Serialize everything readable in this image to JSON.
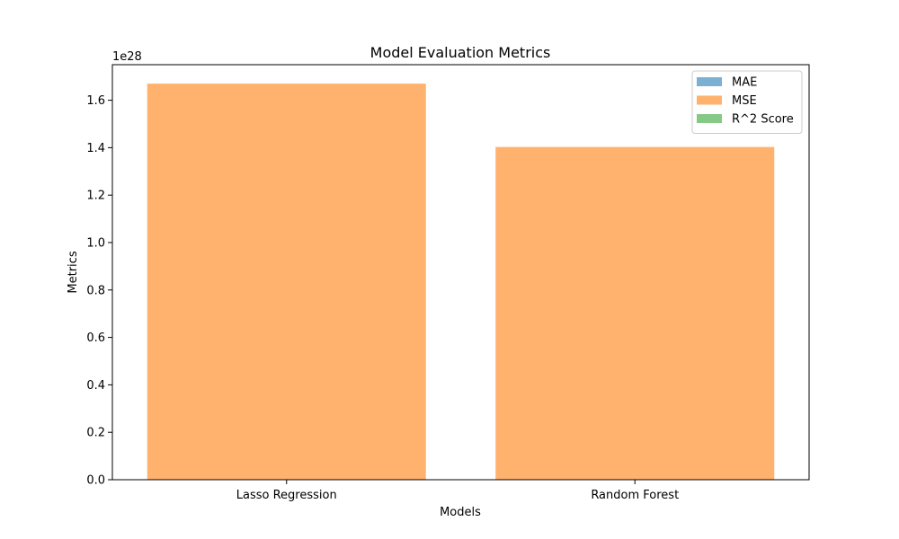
{
  "chart_data": {
    "type": "bar",
    "title": "Model Evaluation Metrics",
    "xlabel": "Models",
    "ylabel": "Metrics",
    "y_offset_label": "1e28",
    "categories": [
      "Lasso Regression",
      "Random Forest"
    ],
    "ylim": [
      0,
      1.75
    ],
    "yticks": [
      0.0,
      0.2,
      0.4,
      0.6,
      0.8,
      1.0,
      1.2,
      1.4,
      1.6
    ],
    "ytick_labels": [
      "0.0",
      "0.2",
      "0.4",
      "0.6",
      "0.8",
      "1.0",
      "1.2",
      "1.4",
      "1.6"
    ],
    "series": [
      {
        "name": "MAE",
        "color": "#7bafd4",
        "values": [
          0,
          0
        ]
      },
      {
        "name": "MSE",
        "color": "#ffb26e",
        "values": [
          1.67,
          1.403
        ]
      },
      {
        "name": "R^2 Score",
        "color": "#86c986",
        "values": [
          0,
          0
        ]
      }
    ],
    "legend_position": "top-right",
    "grid": false
  }
}
